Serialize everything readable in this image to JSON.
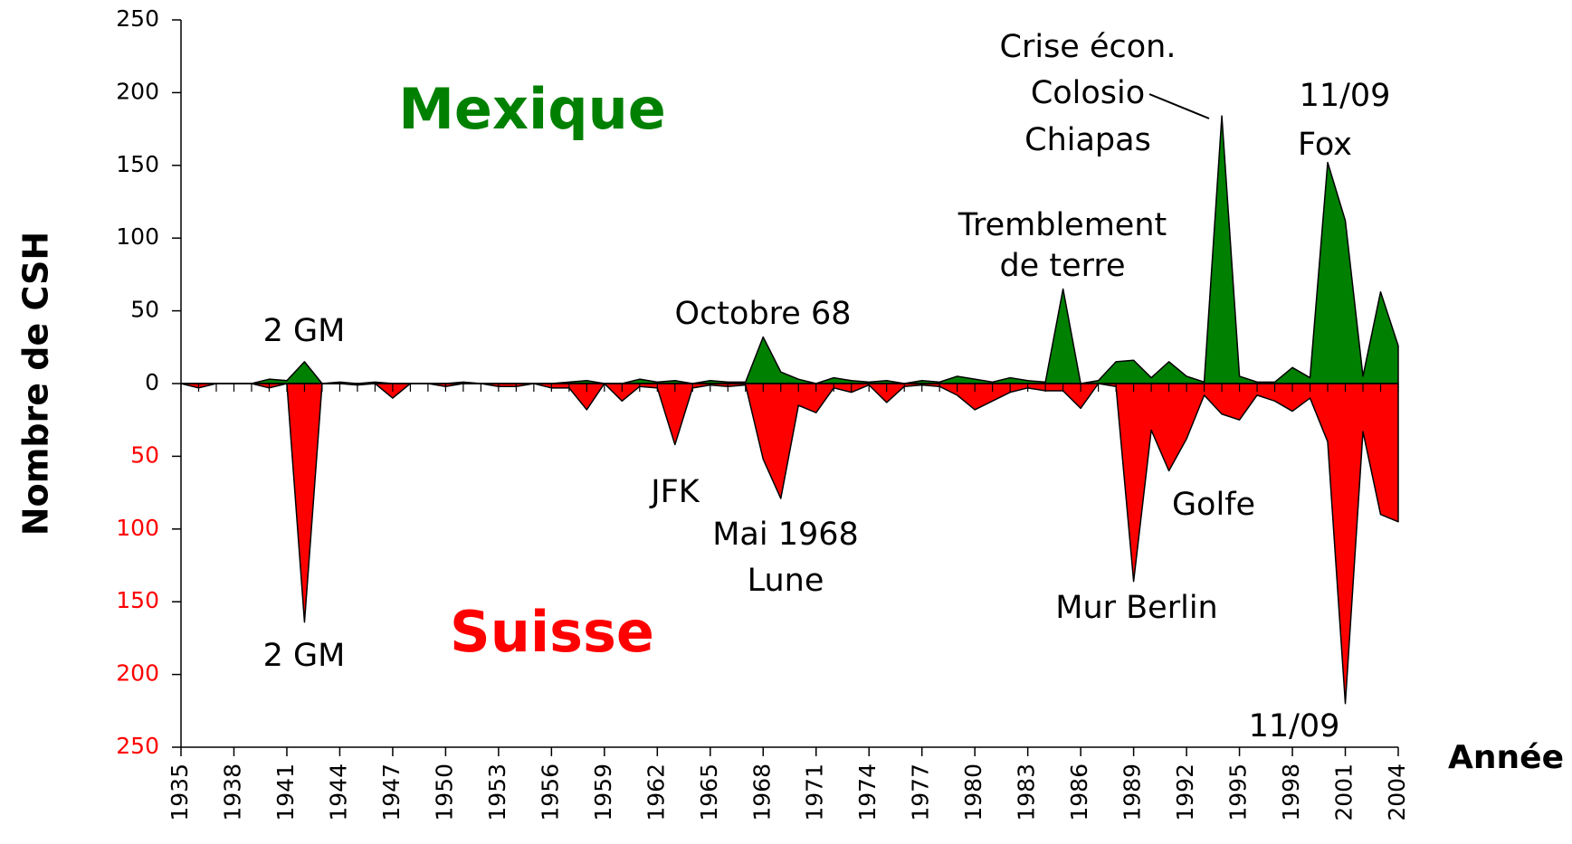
{
  "chart_data": {
    "type": "area",
    "ylabel": "Nombre de CSH",
    "xlabel": "Année",
    "x": [
      1935,
      1936,
      1937,
      1938,
      1939,
      1940,
      1941,
      1942,
      1943,
      1944,
      1945,
      1946,
      1947,
      1948,
      1949,
      1950,
      1951,
      1952,
      1953,
      1954,
      1955,
      1956,
      1957,
      1958,
      1959,
      1960,
      1961,
      1962,
      1963,
      1964,
      1965,
      1966,
      1967,
      1968,
      1969,
      1970,
      1971,
      1972,
      1973,
      1974,
      1975,
      1976,
      1977,
      1978,
      1979,
      1980,
      1981,
      1982,
      1983,
      1984,
      1985,
      1986,
      1987,
      1988,
      1989,
      1990,
      1991,
      1992,
      1993,
      1994,
      1995,
      1996,
      1997,
      1998,
      1999,
      2000,
      2001,
      2002,
      2003,
      2004
    ],
    "series": [
      {
        "name": "Mexique",
        "color": "#008000",
        "values": [
          0,
          0,
          0,
          0,
          0,
          3,
          2,
          15,
          0,
          1,
          0,
          1,
          0,
          0,
          0,
          0,
          1,
          0,
          0,
          0,
          0,
          0,
          1,
          2,
          0,
          0,
          3,
          1,
          2,
          0,
          2,
          1,
          1,
          32,
          8,
          3,
          0,
          4,
          2,
          1,
          2,
          0,
          2,
          1,
          5,
          3,
          1,
          4,
          2,
          1,
          65,
          0,
          2,
          15,
          16,
          4,
          15,
          5,
          1,
          184,
          5,
          1,
          1,
          11,
          4,
          152,
          112,
          5,
          63,
          26
        ]
      },
      {
        "name": "Suisse",
        "color": "#ff0000",
        "values": [
          0,
          -3,
          0,
          0,
          0,
          -3,
          0,
          -164,
          0,
          0,
          -1,
          0,
          -10,
          0,
          0,
          -2,
          0,
          0,
          -2,
          -2,
          0,
          -3,
          -3,
          -18,
          0,
          -12,
          -2,
          -3,
          -42,
          -3,
          -1,
          -2,
          -1,
          -52,
          -79,
          -15,
          -20,
          -3,
          -6,
          -1,
          -13,
          -2,
          -1,
          -2,
          -8,
          -18,
          -12,
          -6,
          -3,
          -5,
          -5,
          -17,
          0,
          -2,
          -136,
          -32,
          -60,
          -38,
          -8,
          -21,
          -25,
          -8,
          -12,
          -19,
          -10,
          -40,
          -220,
          -33,
          -90,
          -95
        ]
      }
    ],
    "xlim": [
      1935,
      2004
    ],
    "xticks": [
      1935,
      1938,
      1941,
      1944,
      1947,
      1950,
      1953,
      1956,
      1959,
      1962,
      1965,
      1968,
      1971,
      1974,
      1977,
      1980,
      1983,
      1986,
      1989,
      1992,
      1995,
      1998,
      2001,
      2004
    ],
    "ylim": [
      -250,
      250
    ],
    "yticks": [
      250,
      200,
      150,
      100,
      50,
      0,
      {
        "value": -50,
        "label": "50"
      },
      {
        "value": -100,
        "label": "100"
      },
      {
        "value": -150,
        "label": "150"
      },
      {
        "value": -200,
        "label": "200"
      },
      {
        "value": -250,
        "label": "250"
      }
    ],
    "negative_tick_color": "#ff0000",
    "grid": false,
    "annotations": [
      "2 GM",
      "Octobre 68",
      "Tremblement",
      "de terre",
      "Crise écon.",
      "Colosio",
      "Chiapas",
      "11/09",
      "Fox",
      "2 GM",
      "JFK",
      "Mai 1968",
      "Lune",
      "Golfe",
      "Mur Berlin",
      "11/09"
    ]
  }
}
